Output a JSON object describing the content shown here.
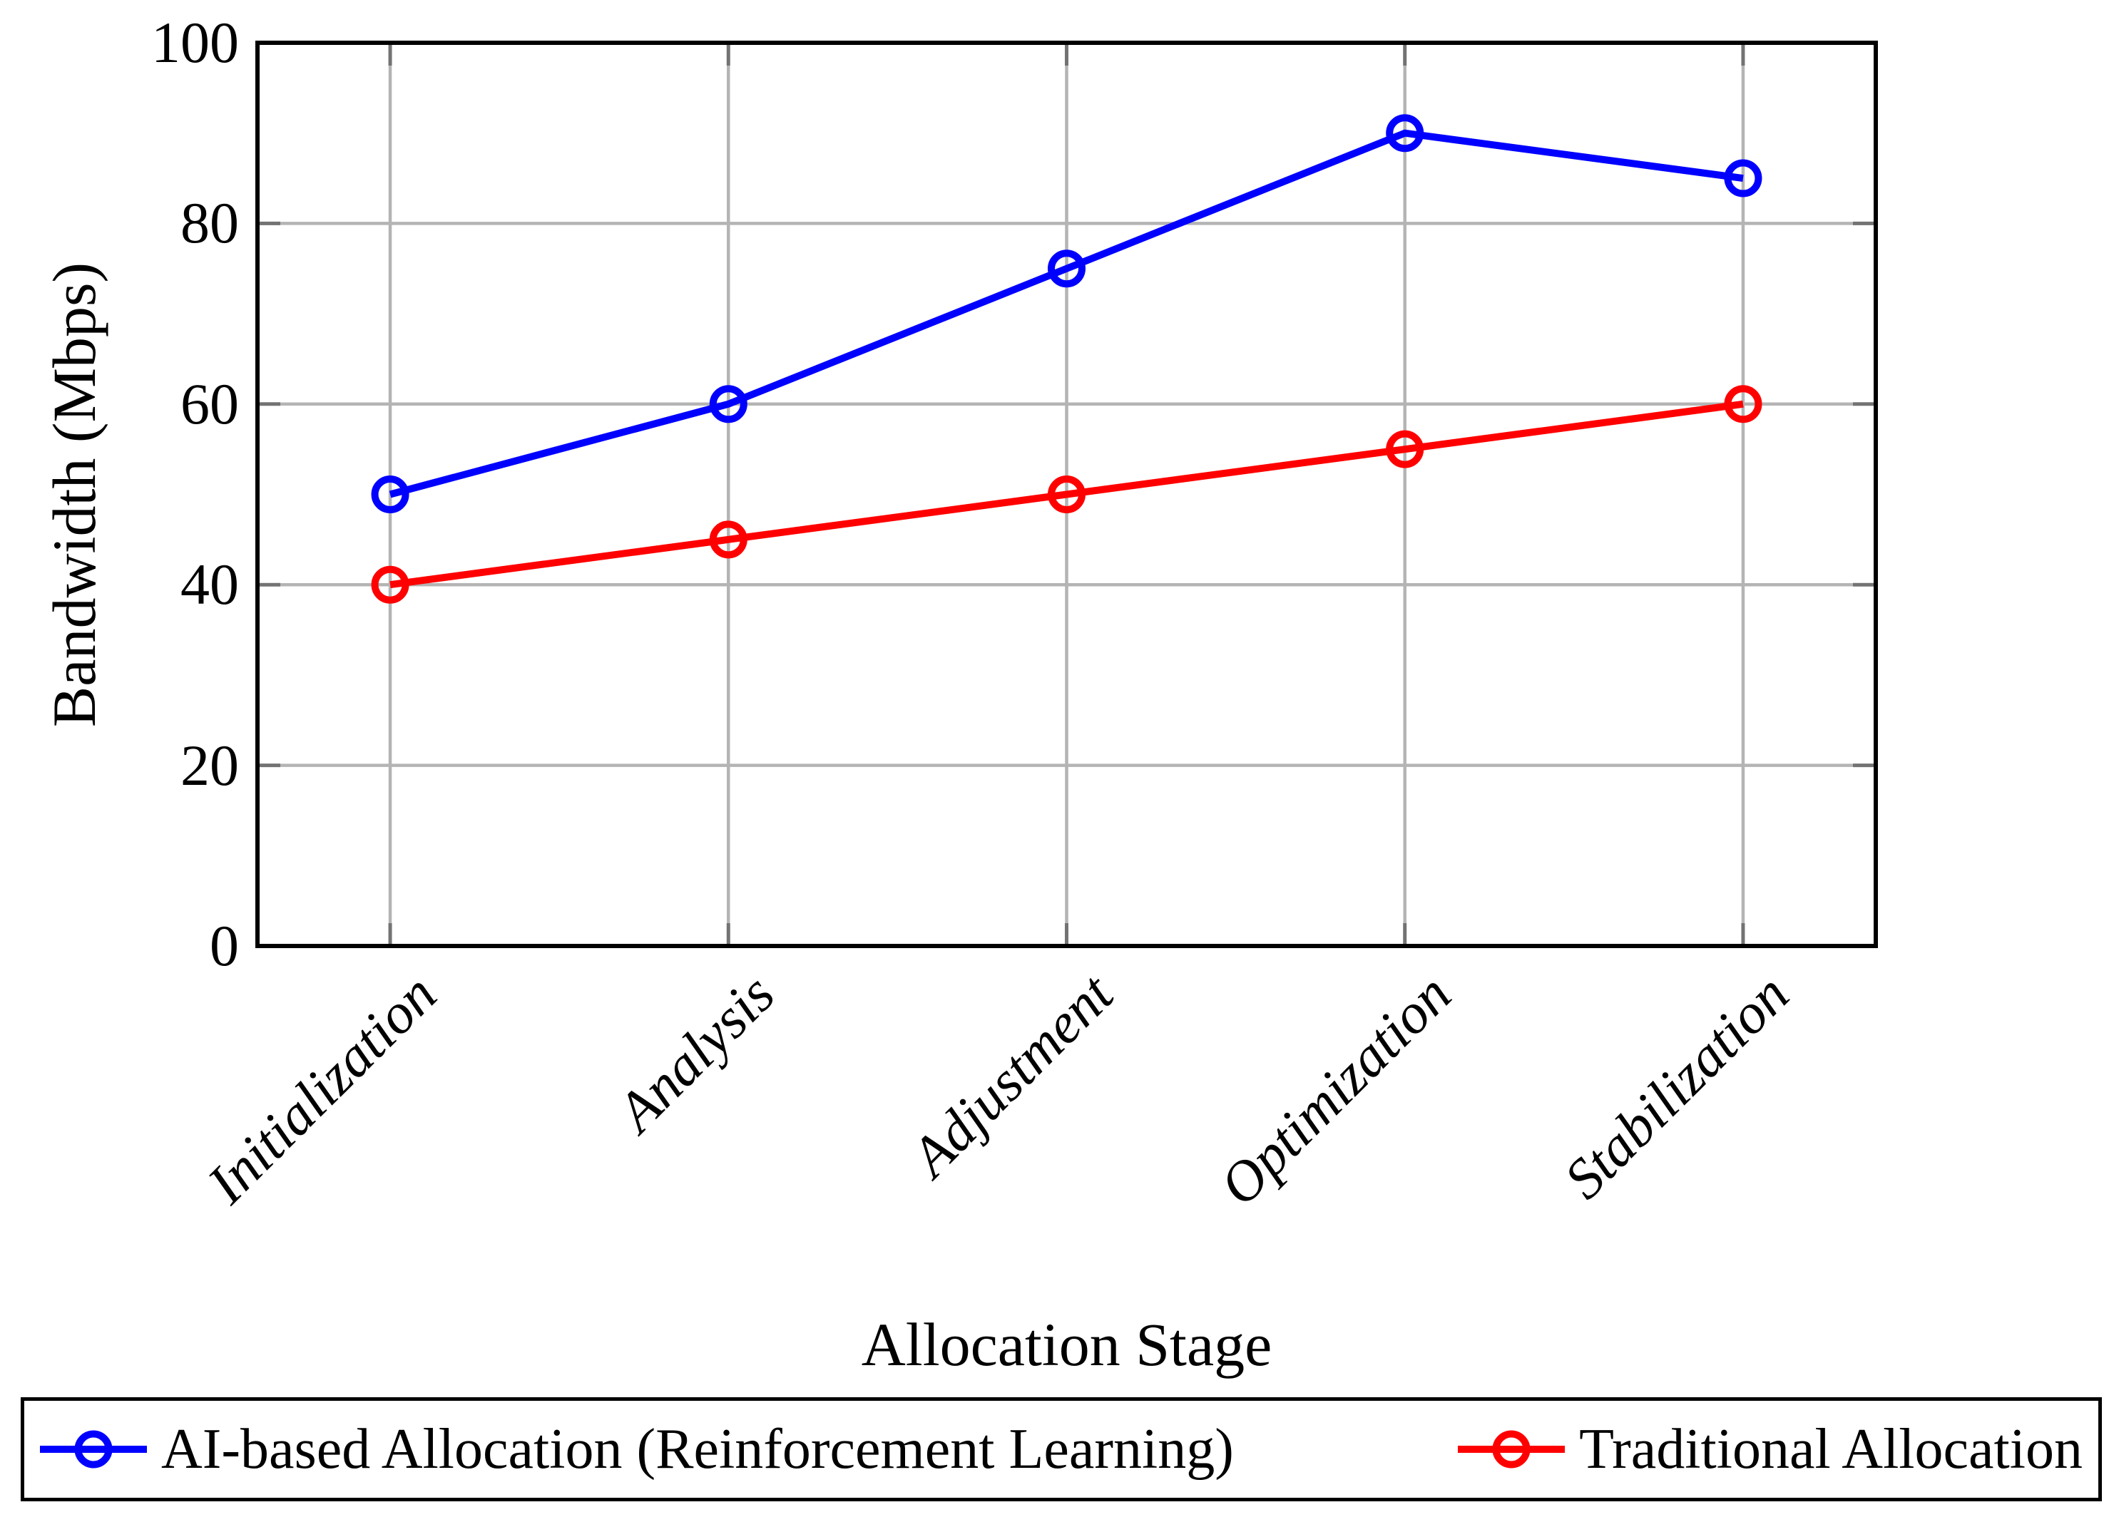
{
  "chart_data": {
    "type": "line",
    "xlabel": "Allocation Stage",
    "ylabel": "Bandwidth (Mbps)",
    "categories": [
      "Initialization",
      "Analysis",
      "Adjustment",
      "Optimization",
      "Stabilization"
    ],
    "series": [
      {
        "name": "AI-based Allocation (Reinforcement Learning)",
        "color": "#0000ff",
        "marker": "open-circle",
        "values": [
          50,
          60,
          75,
          90,
          85
        ]
      },
      {
        "name": "Traditional Allocation",
        "color": "#ff0000",
        "marker": "open-circle",
        "values": [
          40,
          45,
          50,
          55,
          60
        ]
      }
    ],
    "ylim": [
      0,
      100
    ],
    "yticks": [
      0,
      20,
      40,
      60,
      80,
      100
    ],
    "grid": true,
    "legend_position": "bottom",
    "background_color": "#ffffff",
    "axis_color": "#000000",
    "grid_color": "#b4b4b4",
    "tick_color": "#737373"
  }
}
